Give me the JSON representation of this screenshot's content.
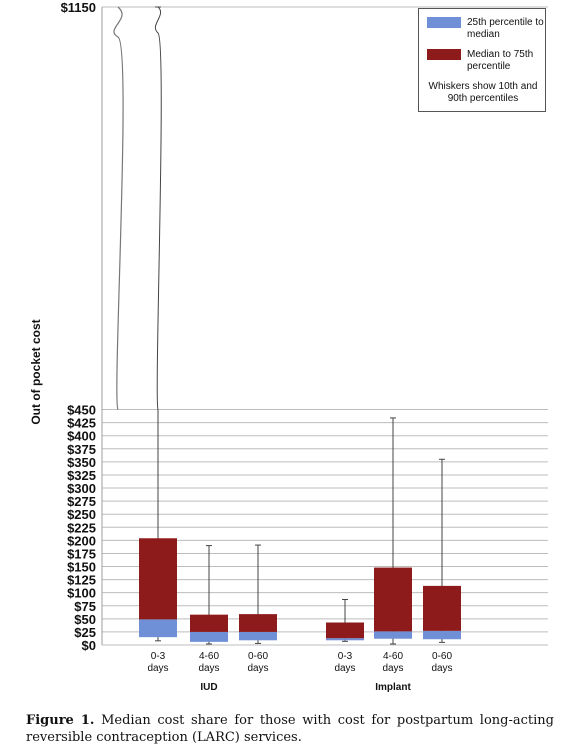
{
  "chart_data": {
    "type": "box",
    "ylabel": "Out of pocket cost",
    "y_ticks": [
      "$0",
      "$25",
      "$50",
      "$75",
      "$100",
      "$125",
      "$150",
      "$175",
      "$200",
      "$225",
      "$250",
      "$275",
      "$300",
      "$325",
      "$350",
      "$375",
      "$400",
      "$425",
      "$450",
      "$1150"
    ],
    "y_tick_values": [
      0,
      25,
      50,
      75,
      100,
      125,
      150,
      175,
      200,
      225,
      250,
      275,
      300,
      325,
      350,
      375,
      400,
      425,
      450,
      1150
    ],
    "axis_break": "between $450 and $1150",
    "ylim": [
      0,
      1150
    ],
    "grid": true,
    "legend_position": "top-right",
    "legend": {
      "lower_label": "25th percentile to median",
      "upper_label": "Median to 75th percentile",
      "note": "Whiskers show 10th and 90th percentiles",
      "lower_color": "#6f8fd6",
      "upper_color": "#8e1b1b"
    },
    "groups": [
      {
        "label": "IUD",
        "boxes": [
          {
            "category": "0-3 days",
            "p10": 8,
            "p25": 15,
            "median": 49,
            "p75": 204,
            "p90": 1150
          },
          {
            "category": "4-60 days",
            "p10": 2,
            "p25": 6,
            "median": 25,
            "p75": 58,
            "p90": 190
          },
          {
            "category": "0-60 days",
            "p10": 3,
            "p25": 9,
            "median": 25,
            "p75": 59,
            "p90": 191
          }
        ]
      },
      {
        "label": "Implant",
        "boxes": [
          {
            "category": "0-3 days",
            "p10": 7,
            "p25": 9,
            "median": 13,
            "p75": 43,
            "p90": 87
          },
          {
            "category": "4-60 days",
            "p10": 2,
            "p25": 12,
            "median": 26,
            "p75": 148,
            "p90": 434
          },
          {
            "category": "0-60 days",
            "p10": 5,
            "p25": 11,
            "median": 27,
            "p75": 113,
            "p90": 355
          }
        ]
      }
    ]
  },
  "caption": {
    "label": "Figure 1.",
    "text": "Median cost share for those with cost for postpartum long-acting reversible contraception (LARC) services."
  }
}
